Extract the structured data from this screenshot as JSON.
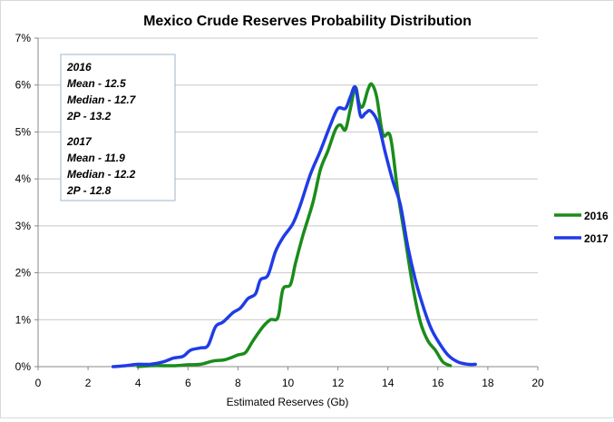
{
  "chart_data": {
    "type": "line",
    "title": "Mexico Crude Reserves Probability Distribution",
    "xlabel": "Estimated Reserves (Gb)",
    "ylabel": "",
    "xlim": [
      0,
      20
    ],
    "ylim": [
      0,
      7
    ],
    "x_ticks": [
      0,
      2,
      4,
      6,
      8,
      10,
      12,
      14,
      16,
      18,
      20
    ],
    "y_ticks": [
      0,
      1,
      2,
      3,
      4,
      5,
      6,
      7
    ],
    "y_tick_labels": [
      "0%",
      "1%",
      "2%",
      "3%",
      "4%",
      "5%",
      "6%",
      "7%"
    ],
    "grid": "horizontal",
    "legend_position": "right",
    "series": [
      {
        "name": "2016",
        "color": "#1a8c1a",
        "points": [
          [
            4.0,
            0.0
          ],
          [
            4.5,
            0.02
          ],
          [
            5.0,
            0.02
          ],
          [
            5.5,
            0.02
          ],
          [
            6.0,
            0.04
          ],
          [
            6.5,
            0.05
          ],
          [
            7.0,
            0.12
          ],
          [
            7.5,
            0.15
          ],
          [
            8.0,
            0.25
          ],
          [
            8.3,
            0.3
          ],
          [
            8.6,
            0.55
          ],
          [
            9.0,
            0.85
          ],
          [
            9.3,
            1.0
          ],
          [
            9.6,
            1.05
          ],
          [
            9.8,
            1.65
          ],
          [
            10.1,
            1.75
          ],
          [
            10.3,
            2.2
          ],
          [
            10.6,
            2.8
          ],
          [
            11.0,
            3.5
          ],
          [
            11.3,
            4.2
          ],
          [
            11.6,
            4.6
          ],
          [
            11.9,
            5.05
          ],
          [
            12.1,
            5.15
          ],
          [
            12.3,
            5.05
          ],
          [
            12.5,
            5.5
          ],
          [
            12.7,
            5.95
          ],
          [
            12.85,
            5.6
          ],
          [
            13.0,
            5.55
          ],
          [
            13.2,
            5.9
          ],
          [
            13.35,
            6.02
          ],
          [
            13.55,
            5.75
          ],
          [
            13.8,
            4.95
          ],
          [
            14.1,
            4.9
          ],
          [
            14.4,
            3.7
          ],
          [
            14.7,
            2.7
          ],
          [
            15.0,
            1.7
          ],
          [
            15.3,
            0.95
          ],
          [
            15.6,
            0.55
          ],
          [
            15.9,
            0.35
          ],
          [
            16.2,
            0.1
          ],
          [
            16.5,
            0.02
          ]
        ]
      },
      {
        "name": "2017",
        "color": "#1f3ce6",
        "points": [
          [
            3.0,
            0.0
          ],
          [
            3.5,
            0.02
          ],
          [
            4.0,
            0.05
          ],
          [
            4.5,
            0.05
          ],
          [
            5.0,
            0.1
          ],
          [
            5.4,
            0.18
          ],
          [
            5.8,
            0.22
          ],
          [
            6.1,
            0.35
          ],
          [
            6.5,
            0.4
          ],
          [
            6.8,
            0.45
          ],
          [
            7.1,
            0.85
          ],
          [
            7.4,
            0.95
          ],
          [
            7.8,
            1.15
          ],
          [
            8.1,
            1.25
          ],
          [
            8.4,
            1.45
          ],
          [
            8.7,
            1.55
          ],
          [
            8.9,
            1.85
          ],
          [
            9.2,
            1.95
          ],
          [
            9.5,
            2.45
          ],
          [
            9.8,
            2.75
          ],
          [
            10.2,
            3.05
          ],
          [
            10.5,
            3.45
          ],
          [
            10.9,
            4.1
          ],
          [
            11.3,
            4.6
          ],
          [
            11.7,
            5.15
          ],
          [
            12.0,
            5.5
          ],
          [
            12.3,
            5.5
          ],
          [
            12.5,
            5.75
          ],
          [
            12.7,
            5.95
          ],
          [
            12.9,
            5.35
          ],
          [
            13.1,
            5.4
          ],
          [
            13.3,
            5.45
          ],
          [
            13.6,
            5.2
          ],
          [
            13.9,
            4.55
          ],
          [
            14.2,
            3.95
          ],
          [
            14.5,
            3.45
          ],
          [
            14.8,
            2.55
          ],
          [
            15.1,
            1.85
          ],
          [
            15.4,
            1.3
          ],
          [
            15.7,
            0.85
          ],
          [
            16.0,
            0.55
          ],
          [
            16.4,
            0.25
          ],
          [
            16.8,
            0.1
          ],
          [
            17.2,
            0.05
          ],
          [
            17.5,
            0.05
          ]
        ]
      }
    ]
  },
  "annotation": {
    "lines": [
      "2016",
      "Mean - 12.5",
      "Median - 12.7",
      "2P - 13.2",
      "2017",
      "Mean - 11.9",
      "Median - 12.2",
      "2P - 12.8"
    ]
  }
}
